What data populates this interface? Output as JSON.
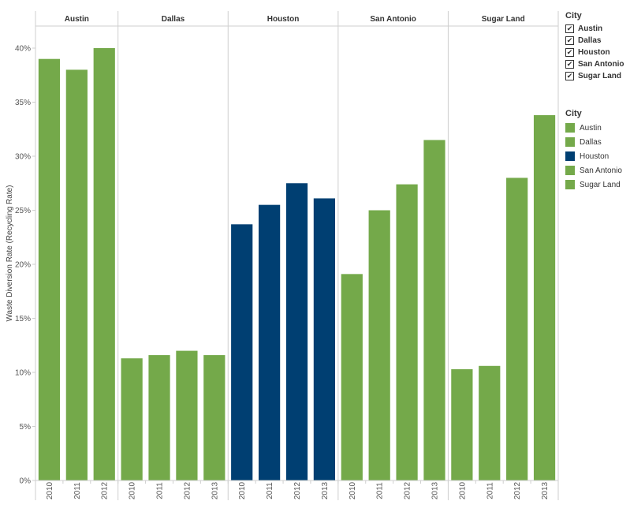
{
  "chart_data": {
    "type": "bar",
    "ylabel": "Waste Diversion Rate (Recycling Rate)",
    "ylim": [
      0,
      42
    ],
    "yticks": [
      0,
      5,
      10,
      15,
      20,
      25,
      30,
      35,
      40
    ],
    "ytick_labels": [
      "0%",
      "5%",
      "10%",
      "15%",
      "20%",
      "25%",
      "30%",
      "35%",
      "40%"
    ],
    "grid": false,
    "panels": [
      {
        "name": "Austin",
        "color": "#74A94A",
        "categories": [
          "2010",
          "2011",
          "2012"
        ],
        "values": [
          39.0,
          38.0,
          40.0
        ]
      },
      {
        "name": "Dallas",
        "color": "#74A94A",
        "categories": [
          "2010",
          "2011",
          "2012",
          "2013"
        ],
        "values": [
          11.3,
          11.6,
          12.0,
          11.6
        ]
      },
      {
        "name": "Houston",
        "color": "#003F72",
        "categories": [
          "2010",
          "2011",
          "2012",
          "2013"
        ],
        "values": [
          23.7,
          25.5,
          27.5,
          26.1
        ]
      },
      {
        "name": "San Antonio",
        "color": "#74A94A",
        "categories": [
          "2010",
          "2011",
          "2012",
          "2013"
        ],
        "values": [
          19.1,
          25.0,
          27.4,
          31.5
        ]
      },
      {
        "name": "Sugar Land",
        "color": "#74A94A",
        "categories": [
          "2010",
          "2011",
          "2012",
          "2013"
        ],
        "values": [
          10.3,
          10.6,
          28.0,
          33.8
        ]
      }
    ],
    "legend_placement": "right"
  },
  "filter_legend": {
    "title": "City",
    "check_glyph": "✔",
    "items": [
      "Austin",
      "Dallas",
      "Houston",
      "San Antonio",
      "Sugar Land"
    ]
  },
  "color_legend": {
    "title": "City",
    "items": [
      {
        "label": "Austin",
        "color": "#74A94A"
      },
      {
        "label": "Dallas",
        "color": "#74A94A"
      },
      {
        "label": "Houston",
        "color": "#003F72"
      },
      {
        "label": "San Antonio",
        "color": "#74A94A"
      },
      {
        "label": "Sugar Land",
        "color": "#74A94A"
      }
    ]
  }
}
